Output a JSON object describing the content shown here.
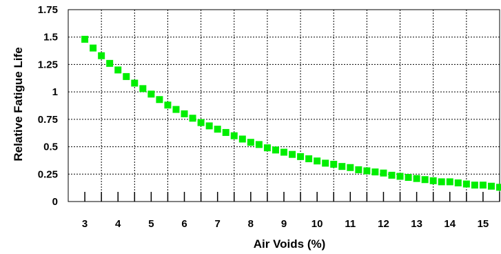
{
  "chart_data": {
    "type": "scatter",
    "title": "",
    "xlabel": "Air Voids (%)",
    "ylabel": "Relative Fatigue Life",
    "xlim": [
      2.5,
      15.5
    ],
    "ylim": [
      0,
      1.75
    ],
    "x_ticks": [
      "3",
      "4",
      "5",
      "6",
      "7",
      "8",
      "9",
      "10",
      "11",
      "12",
      "13",
      "14",
      "15"
    ],
    "y_ticks": [
      "0",
      "0.25",
      "0.5",
      "0.75",
      "1",
      "1.25",
      "1.5",
      "1.75"
    ],
    "grid": true,
    "series": [
      {
        "color": "#00ee00",
        "x": [
          3.0,
          3.25,
          3.5,
          3.75,
          4.0,
          4.25,
          4.5,
          4.75,
          5.0,
          5.25,
          5.5,
          5.75,
          6.0,
          6.25,
          6.5,
          6.75,
          7.0,
          7.25,
          7.5,
          7.75,
          8.0,
          8.25,
          8.5,
          8.75,
          9.0,
          9.25,
          9.5,
          9.75,
          10.0,
          10.25,
          10.5,
          10.75,
          11.0,
          11.25,
          11.5,
          11.75,
          12.0,
          12.25,
          12.5,
          12.75,
          13.0,
          13.25,
          13.5,
          13.75,
          14.0,
          14.25,
          14.5,
          14.75,
          15.0,
          15.25,
          15.5
        ],
        "y": [
          1.48,
          1.4,
          1.33,
          1.26,
          1.2,
          1.14,
          1.08,
          1.03,
          0.98,
          0.93,
          0.88,
          0.84,
          0.8,
          0.76,
          0.72,
          0.69,
          0.66,
          0.63,
          0.6,
          0.57,
          0.54,
          0.52,
          0.49,
          0.47,
          0.45,
          0.43,
          0.41,
          0.39,
          0.37,
          0.35,
          0.34,
          0.32,
          0.31,
          0.29,
          0.28,
          0.27,
          0.26,
          0.24,
          0.23,
          0.22,
          0.21,
          0.2,
          0.19,
          0.18,
          0.18,
          0.17,
          0.16,
          0.15,
          0.15,
          0.14,
          0.13
        ]
      }
    ]
  }
}
